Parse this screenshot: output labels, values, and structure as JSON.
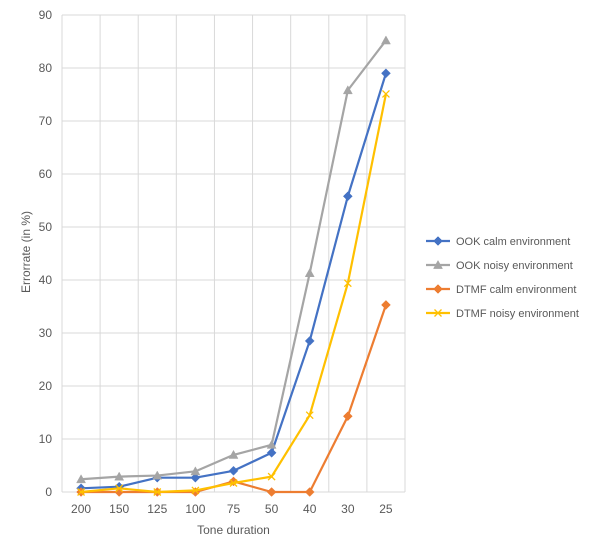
{
  "chart_data": {
    "type": "line",
    "title": "",
    "xlabel": "Tone duration",
    "ylabel": "Errorrate (in %)",
    "categories": [
      "200",
      "150",
      "125",
      "100",
      "75",
      "50",
      "40",
      "30",
      "25"
    ],
    "ylim": [
      0,
      90
    ],
    "yticks": [
      "0",
      "10",
      "20",
      "30",
      "40",
      "50",
      "60",
      "70",
      "80",
      "90"
    ],
    "grid": true,
    "legend_position": "right",
    "series": [
      {
        "name": "OOK calm environment",
        "color": "#4472C4",
        "marker": "diamond",
        "values": [
          0.7,
          1.0,
          2.7,
          2.7,
          4.0,
          7.4,
          28.5,
          55.8,
          79.0
        ]
      },
      {
        "name": "OOK noisy environment",
        "color": "#A5A5A5",
        "marker": "triangle",
        "values": [
          2.4,
          2.9,
          3.1,
          3.9,
          7.0,
          8.9,
          41.3,
          75.8,
          85.2
        ]
      },
      {
        "name": "DTMF calm environment",
        "color": "#ED7D31",
        "marker": "diamond",
        "values": [
          0.0,
          0.0,
          0.0,
          0.0,
          2.0,
          0.0,
          0.0,
          14.3,
          35.3
        ]
      },
      {
        "name": "DTMF noisy environment",
        "color": "#FFC000",
        "marker": "x",
        "values": [
          0.0,
          0.7,
          0.0,
          0.3,
          1.7,
          2.9,
          14.5,
          39.4,
          75.1
        ]
      }
    ]
  }
}
